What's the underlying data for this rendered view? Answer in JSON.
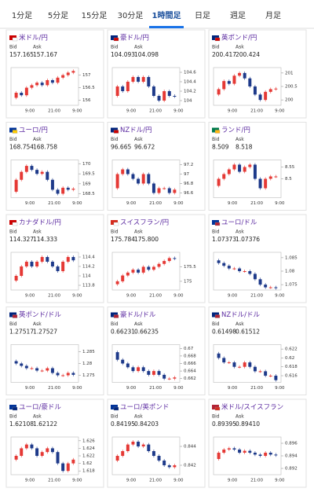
{
  "tabs": [
    "1分足",
    "5分足",
    "15分足",
    "30分足",
    "1時間足",
    "日足",
    "週足",
    "月足"
  ],
  "selected_tab": 4,
  "bid_label": "Bid",
  "ask_label": "Ask",
  "cards": [
    {
      "pair": "米ドル/円",
      "bid": "157.165",
      "ask": "157.167",
      "chart": {
        "type": "candlestick",
        "closes": [
          156.1,
          156.3,
          156.2,
          156.5,
          156.6,
          156.7,
          156.6,
          156.8,
          156.7,
          156.9,
          157.0,
          157.1,
          157.165
        ],
        "ylim": [
          155.8,
          157.3
        ],
        "yticks": [
          157,
          156.5,
          156
        ],
        "xticks": [
          "9:00",
          "21:00",
          "9:00"
        ]
      }
    },
    {
      "pair": "豪ドル/円",
      "bid": "104.093",
      "ask": "104.098",
      "chart": {
        "type": "candlestick",
        "closes": [
          104.1,
          104.3,
          104.2,
          104.4,
          104.5,
          104.4,
          104.5,
          104.3,
          104.1,
          104.0,
          104.2,
          104.1,
          104.09
        ],
        "ylim": [
          103.9,
          104.7
        ],
        "yticks": [
          104.6,
          104.4,
          104.2,
          104
        ],
        "xticks": [
          "9:00",
          "21:00",
          "9:00"
        ]
      }
    },
    {
      "pair": "英ポンド/円",
      "bid": "200.417",
      "ask": "200.424",
      "chart": {
        "type": "candlestick",
        "closes": [
          200.2,
          200.4,
          200.7,
          200.6,
          200.9,
          201.0,
          200.8,
          200.5,
          200.2,
          200.0,
          200.3,
          200.4,
          200.42
        ],
        "ylim": [
          199.8,
          201.2
        ],
        "yticks": [
          201,
          200.5,
          200
        ],
        "xticks": [
          "9:00",
          "21:00",
          "9:00"
        ]
      }
    },
    {
      "pair": "ユーロ/円",
      "bid": "168.754",
      "ask": "168.758",
      "chart": {
        "type": "candlestick",
        "closes": [
          168.6,
          169.2,
          169.6,
          169.9,
          169.7,
          169.5,
          169.6,
          169.2,
          168.7,
          168.5,
          168.8,
          168.7,
          168.75
        ],
        "ylim": [
          168.3,
          170.2
        ],
        "yticks": [
          170,
          169.5,
          169,
          168.5
        ],
        "xticks": [
          "9:00",
          "21:00",
          "9:00"
        ]
      }
    },
    {
      "pair": "NZドル/円",
      "bid": "96.665",
      "ask": "96.672",
      "chart": {
        "type": "candlestick",
        "closes": [
          96.7,
          97.0,
          97.1,
          97.0,
          96.9,
          96.8,
          97.0,
          96.8,
          96.6,
          96.7,
          96.7,
          96.6,
          96.67
        ],
        "ylim": [
          96.5,
          97.3
        ],
        "yticks": [
          97.2,
          97,
          96.8,
          96.6
        ],
        "xticks": [
          "9:00",
          "21:00",
          "9:00"
        ]
      }
    },
    {
      "pair": "ランド/円",
      "bid": "8.509",
      "ask": "8.518",
      "chart": {
        "type": "candlestick",
        "closes": [
          8.47,
          8.5,
          8.52,
          8.54,
          8.56,
          8.53,
          8.55,
          8.56,
          8.5,
          8.46,
          8.5,
          8.51,
          8.51
        ],
        "ylim": [
          8.42,
          8.58
        ],
        "yticks": [
          8.55,
          8.5
        ],
        "xticks": [
          "9:00",
          "21:00",
          "9:00"
        ]
      }
    },
    {
      "pair": "カナダドル/円",
      "bid": "114.327",
      "ask": "114.333",
      "chart": {
        "type": "candlestick",
        "closes": [
          113.9,
          114.0,
          114.2,
          114.3,
          114.2,
          114.3,
          114.4,
          114.3,
          114.2,
          114.1,
          114.3,
          114.4,
          114.33
        ],
        "ylim": [
          113.7,
          114.5
        ],
        "yticks": [
          114.4,
          114.2,
          114,
          113.8
        ],
        "xticks": [
          "9:00",
          "21:00",
          "9:00"
        ]
      }
    },
    {
      "pair": "スイスフラン/円",
      "bid": "175.784",
      "ask": "175.800",
      "chart": {
        "type": "candlestick",
        "closes": [
          174.9,
          175.0,
          175.2,
          175.3,
          175.4,
          175.3,
          175.5,
          175.4,
          175.5,
          175.6,
          175.7,
          175.8,
          175.78
        ],
        "ylim": [
          174.7,
          176
        ],
        "yticks": [
          175.5,
          175
        ],
        "xticks": [
          "9:00",
          "21:00",
          "9:00"
        ]
      }
    },
    {
      "pair": "ユーロ/ドル",
      "bid": "1.07373",
      "ask": "1.07376",
      "chart": {
        "type": "candlestick",
        "closes": [
          1.084,
          1.083,
          1.082,
          1.081,
          1.081,
          1.08,
          1.08,
          1.079,
          1.077,
          1.075,
          1.074,
          1.074,
          1.0737
        ],
        "ylim": [
          1.073,
          1.087
        ],
        "yticks": [
          1.085,
          1.08,
          1.075
        ],
        "xticks": [
          "9:00",
          "21:00",
          "9:00"
        ]
      }
    },
    {
      "pair": "英ポンド/ドル",
      "bid": "1.27517",
      "ask": "1.27527",
      "chart": {
        "type": "candlestick",
        "closes": [
          1.281,
          1.28,
          1.279,
          1.278,
          1.278,
          1.277,
          1.277,
          1.278,
          1.276,
          1.275,
          1.275,
          1.276,
          1.2752
        ],
        "ylim": [
          1.272,
          1.288
        ],
        "yticks": [
          1.285,
          1.28,
          1.275
        ],
        "xticks": [
          "9:00",
          "21:00",
          "9:00"
        ]
      }
    },
    {
      "pair": "豪ドル/ドル",
      "bid": "0.66231",
      "ask": "0.66235",
      "chart": {
        "type": "candlestick",
        "closes": [
          0.669,
          0.667,
          0.666,
          0.665,
          0.664,
          0.665,
          0.664,
          0.663,
          0.664,
          0.663,
          0.662,
          0.662,
          0.6623
        ],
        "ylim": [
          0.661,
          0.671
        ],
        "yticks": [
          0.67,
          0.668,
          0.666,
          0.664,
          0.662
        ],
        "xticks": [
          "9:00",
          "21:00",
          "9:00"
        ]
      }
    },
    {
      "pair": "NZドル/ドル",
      "bid": "0.61498",
      "ask": "0.61512",
      "chart": {
        "type": "candlestick",
        "closes": [
          0.621,
          0.62,
          0.619,
          0.619,
          0.618,
          0.618,
          0.619,
          0.618,
          0.617,
          0.617,
          0.616,
          0.616,
          0.615
        ],
        "ylim": [
          0.6145,
          0.623
        ],
        "yticks": [
          0.622,
          0.62,
          0.618,
          0.616
        ],
        "xticks": [
          "9:00",
          "21:00",
          "9:00"
        ]
      }
    },
    {
      "pair": "ユーロ/豪ドル",
      "bid": "1.62108",
      "ask": "1.62122",
      "chart": {
        "type": "candlestick",
        "closes": [
          1.621,
          1.622,
          1.624,
          1.625,
          1.624,
          1.622,
          1.623,
          1.624,
          1.623,
          1.62,
          1.618,
          1.62,
          1.621
        ],
        "ylim": [
          1.617,
          1.627
        ],
        "yticks": [
          1.626,
          1.624,
          1.622,
          1.62,
          1.618
        ],
        "xticks": [
          "9:00",
          "21:00",
          "9:00"
        ]
      }
    },
    {
      "pair": "ユーロ/英ポンド",
      "bid": "0.84195",
      "ask": "0.84203",
      "chart": {
        "type": "candlestick",
        "closes": [
          0.8425,
          0.843,
          0.8435,
          0.8442,
          0.8445,
          0.844,
          0.8442,
          0.8435,
          0.843,
          0.8425,
          0.842,
          0.8418,
          0.842
        ],
        "ylim": [
          0.841,
          0.845
        ],
        "yticks": [
          0.844,
          0.842
        ],
        "xticks": [
          "9:00",
          "21:00",
          "9:00"
        ]
      }
    },
    {
      "pair": "米ドル/スイスフラン",
      "bid": "0.89395",
      "ask": "0.89410",
      "chart": {
        "type": "candlestick",
        "closes": [
          0.8935,
          0.8945,
          0.895,
          0.8952,
          0.895,
          0.8945,
          0.8948,
          0.8945,
          0.8942,
          0.894,
          0.8945,
          0.8942,
          0.8941
        ],
        "ylim": [
          0.891,
          0.897
        ],
        "yticks": [
          0.896,
          0.894,
          0.892
        ],
        "xticks": [
          "9:00",
          "21:00",
          "9:00"
        ]
      }
    }
  ]
}
